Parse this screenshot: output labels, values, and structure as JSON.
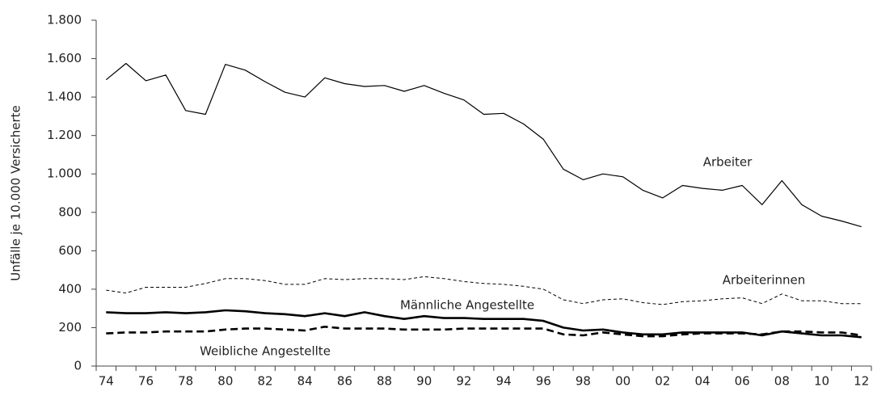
{
  "chart_data": {
    "type": "line",
    "y_label": "Unfälle je 10.000 Versicherte",
    "categories": [
      "74",
      null,
      "76",
      null,
      "78",
      null,
      "80",
      null,
      "82",
      null,
      "84",
      null,
      "86",
      null,
      "88",
      null,
      "90",
      null,
      "92",
      null,
      "94",
      null,
      "96",
      null,
      "98",
      null,
      "00",
      null,
      "02",
      null,
      "04",
      null,
      "06",
      null,
      "08",
      null,
      "10",
      null,
      "12"
    ],
    "ylim": [
      0,
      1800
    ],
    "yticks": [
      0,
      200,
      400,
      600,
      800,
      {
        "value": 1000,
        "label": "1.000"
      },
      {
        "value": 1200,
        "label": "1.200"
      },
      {
        "value": 1400,
        "label": "1.400"
      },
      {
        "value": 1600,
        "label": "1.600"
      },
      {
        "value": 1800,
        "label": "1.800"
      }
    ],
    "grid": false,
    "series": [
      {
        "name": "Arbeiter",
        "color": "#000000",
        "style": "solid",
        "line_width": 1.2,
        "values": [
          1490,
          1575,
          1485,
          1515,
          1330,
          1310,
          1570,
          1540,
          1480,
          1425,
          1400,
          1500,
          1470,
          1455,
          1460,
          1430,
          1460,
          1420,
          1385,
          1310,
          1315,
          1260,
          1180,
          1025,
          970,
          1000,
          985,
          915,
          875,
          940,
          925,
          915,
          940,
          840,
          965,
          840,
          780,
          755,
          725
        ]
      },
      {
        "name": "Arbeiterinnen",
        "color": "#000000",
        "style": "dashed",
        "line_width": 1,
        "values": [
          395,
          380,
          410,
          410,
          410,
          430,
          455,
          455,
          445,
          425,
          425,
          455,
          450,
          455,
          455,
          450,
          465,
          455,
          440,
          430,
          425,
          415,
          400,
          345,
          325,
          345,
          350,
          330,
          320,
          335,
          340,
          350,
          355,
          325,
          375,
          340,
          340,
          325,
          325
        ]
      },
      {
        "name": "Männliche Angestellte",
        "color": "#000000",
        "style": "solid",
        "line_width": 2.6,
        "values": [
          280,
          275,
          275,
          280,
          275,
          280,
          290,
          285,
          275,
          270,
          260,
          275,
          260,
          280,
          260,
          245,
          260,
          250,
          250,
          245,
          245,
          245,
          235,
          200,
          185,
          190,
          175,
          165,
          165,
          175,
          175,
          175,
          175,
          160,
          180,
          170,
          160,
          160,
          150
        ]
      },
      {
        "name": "Weibliche Angestellte",
        "color": "#000000",
        "style": "dashed",
        "line_width": 2.6,
        "values": [
          170,
          175,
          175,
          180,
          180,
          180,
          190,
          195,
          195,
          190,
          185,
          205,
          195,
          195,
          195,
          190,
          190,
          190,
          195,
          195,
          195,
          195,
          195,
          165,
          160,
          175,
          165,
          155,
          155,
          165,
          170,
          170,
          170,
          165,
          180,
          180,
          175,
          175,
          160
        ]
      }
    ]
  }
}
